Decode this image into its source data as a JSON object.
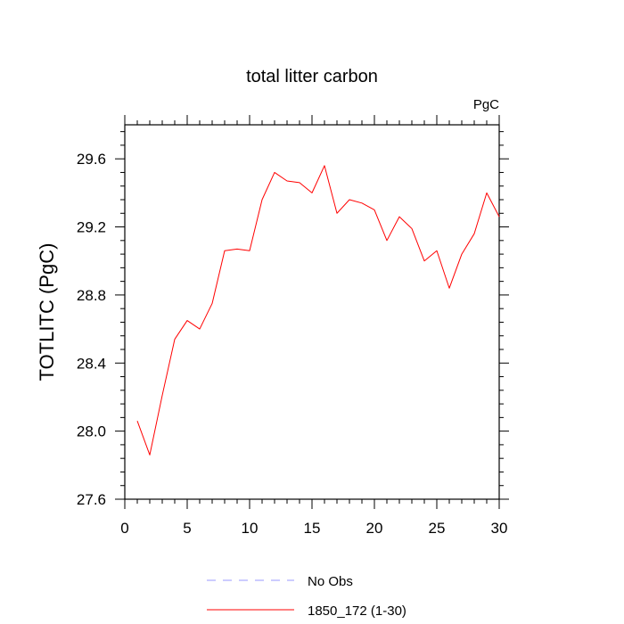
{
  "chart_data": {
    "type": "line",
    "title": "total litter carbon",
    "units_label": "PgC",
    "ylabel": "TOTLITC  (PgC)",
    "xlabel": "",
    "xlim": [
      0,
      30
    ],
    "ylim": [
      27.6,
      29.8
    ],
    "x_ticks": [
      0,
      5,
      10,
      15,
      20,
      25,
      30
    ],
    "y_ticks": [
      27.6,
      28.0,
      28.4,
      28.8,
      29.2,
      29.6
    ],
    "x_tick_labels": [
      "0",
      "5",
      "10",
      "15",
      "20",
      "25",
      "30"
    ],
    "y_tick_labels": [
      "27.6",
      "28.0",
      "28.4",
      "28.8",
      "29.2",
      "29.6"
    ],
    "grid": false,
    "series": [
      {
        "name": "1850_172 (1-30)",
        "color": "#ff0000",
        "dash": "solid",
        "x": [
          1,
          2,
          3,
          4,
          5,
          6,
          7,
          8,
          9,
          10,
          11,
          12,
          13,
          14,
          15,
          16,
          17,
          18,
          19,
          20,
          21,
          22,
          23,
          24,
          25,
          26,
          27,
          28,
          29,
          30
        ],
        "y": [
          28.06,
          27.86,
          28.21,
          28.54,
          28.65,
          28.6,
          28.75,
          29.06,
          29.07,
          29.06,
          29.36,
          29.52,
          29.47,
          29.46,
          29.4,
          29.56,
          29.28,
          29.36,
          29.34,
          29.3,
          29.12,
          29.26,
          29.19,
          29.0,
          29.06,
          28.84,
          29.04,
          29.16,
          29.4,
          29.26
        ]
      }
    ],
    "legend": {
      "placement": "bottom",
      "entries": [
        {
          "label": "No Obs",
          "color": "#9999ff",
          "dash": "dashed"
        },
        {
          "label": "1850_172 (1-30)",
          "color": "#ff0000",
          "dash": "solid"
        }
      ]
    }
  }
}
